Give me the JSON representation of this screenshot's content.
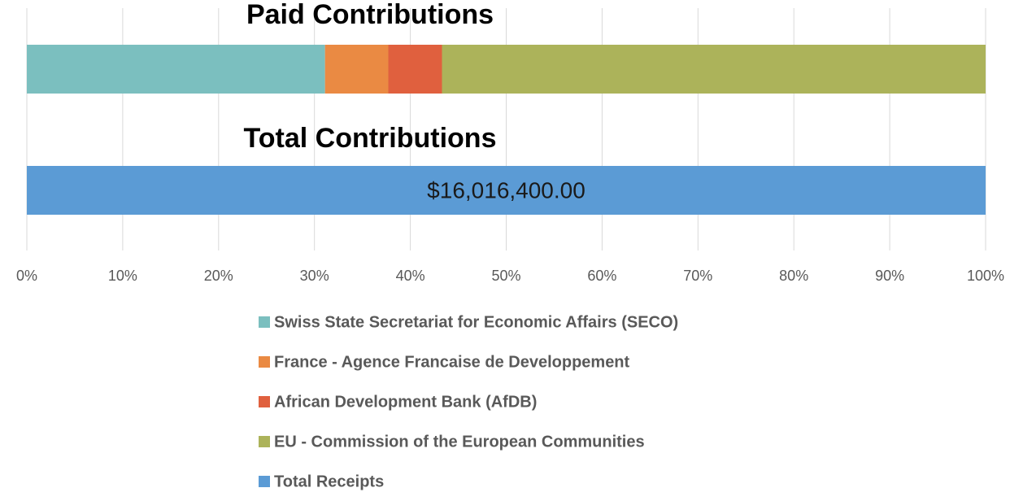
{
  "chart_data": {
    "type": "stacked-bar-horizontal",
    "categories": [
      "Paid Contributions",
      "Total Contributions"
    ],
    "series": [
      {
        "name": "Swiss State Secretariat for Economic Affairs (SECO)",
        "color": "#7bbfbf",
        "values": [
          31.1,
          null
        ]
      },
      {
        "name": "France - Agence Francaise de Developpement",
        "color": "#ea8a43",
        "values": [
          6.6,
          null
        ]
      },
      {
        "name": "African Development Bank (AfDB)",
        "color": "#e0603e",
        "values": [
          5.6,
          null
        ]
      },
      {
        "name": "EU - Commission of the European Communities",
        "color": "#acb35a",
        "values": [
          56.7,
          null
        ]
      },
      {
        "name": "Total Receipts",
        "color": "#5b9bd5",
        "values": [
          null,
          100
        ]
      }
    ],
    "annotations": [
      {
        "text": "$16,016,400.00",
        "category": 1
      }
    ],
    "xlim": [
      0,
      100
    ],
    "xticks": [
      {
        "value": 0,
        "label": "0%"
      },
      {
        "value": 10,
        "label": "10%"
      },
      {
        "value": 20,
        "label": "20%"
      },
      {
        "value": 30,
        "label": "30%"
      },
      {
        "value": 40,
        "label": "40%"
      },
      {
        "value": 50,
        "label": "50%"
      },
      {
        "value": 60,
        "label": "60%"
      },
      {
        "value": 70,
        "label": "70%"
      },
      {
        "value": 80,
        "label": "80%"
      },
      {
        "value": 90,
        "label": "90%"
      },
      {
        "value": 100,
        "label": "100%"
      }
    ],
    "grid": true
  }
}
